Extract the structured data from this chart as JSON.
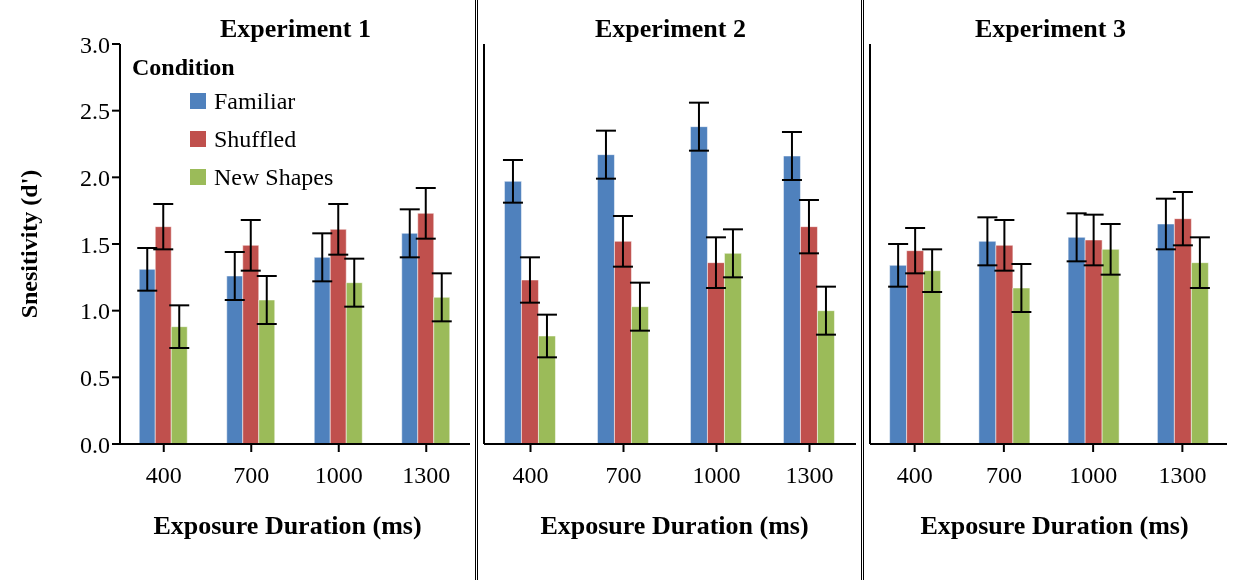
{
  "chart_data": [
    {
      "type": "bar",
      "title": "Experiment 1",
      "xlabel": "Exposure Duration (ms)",
      "ylabel": "Snesitivity (d')",
      "legend_title": "Condition",
      "legend": "top left",
      "categories": [
        "400",
        "700",
        "1000",
        "1300"
      ],
      "ylim": [
        0,
        3
      ],
      "yticks": [
        {
          "value": 0,
          "label": "0.0"
        },
        {
          "value": 0.5,
          "label": "0.5"
        },
        {
          "value": 1,
          "label": "1.0"
        },
        {
          "value": 1.5,
          "label": "1.5"
        },
        {
          "value": 2,
          "label": "2.0"
        },
        {
          "value": 2.5,
          "label": "2.5"
        },
        {
          "value": 3,
          "label": "3.0"
        }
      ],
      "grid": false,
      "series": [
        {
          "name": "Familiar",
          "color": "#4f81bd",
          "values": [
            1.31,
            1.26,
            1.4,
            1.58
          ],
          "errors": [
            0.16,
            0.18,
            0.18,
            0.18
          ]
        },
        {
          "name": "Shuffled",
          "color": "#c0504d",
          "values": [
            1.63,
            1.49,
            1.61,
            1.73
          ],
          "errors": [
            0.17,
            0.19,
            0.19,
            0.19
          ]
        },
        {
          "name": "New Shapes",
          "color": "#9bbb59",
          "values": [
            0.88,
            1.08,
            1.21,
            1.1
          ],
          "errors": [
            0.16,
            0.18,
            0.18,
            0.18
          ]
        }
      ]
    },
    {
      "type": "bar",
      "title": "Experiment 2",
      "xlabel": "Exposure Duration (ms)",
      "categories": [
        "400",
        "700",
        "1000",
        "1300"
      ],
      "ylim": [
        0,
        3
      ],
      "tick_labels": "x",
      "grid": false,
      "series": [
        {
          "color": "#4f81bd",
          "values": [
            1.97,
            2.17,
            2.38,
            2.16
          ],
          "errors": [
            0.16,
            0.18,
            0.18,
            0.18
          ]
        },
        {
          "color": "#c0504d",
          "values": [
            1.23,
            1.52,
            1.36,
            1.63
          ],
          "errors": [
            0.17,
            0.19,
            0.19,
            0.2
          ]
        },
        {
          "color": "#9bbb59",
          "values": [
            0.81,
            1.03,
            1.43,
            1.0
          ],
          "errors": [
            0.16,
            0.18,
            0.18,
            0.18
          ]
        }
      ]
    },
    {
      "type": "bar",
      "title": "Experiment 3",
      "xlabel": "Exposure Duration (ms)",
      "categories": [
        "400",
        "700",
        "1000",
        "1300"
      ],
      "ylim": [
        0,
        3
      ],
      "tick_labels": "x",
      "grid": false,
      "series": [
        {
          "color": "#4f81bd",
          "values": [
            1.34,
            1.52,
            1.55,
            1.65
          ],
          "errors": [
            0.16,
            0.18,
            0.18,
            0.19
          ]
        },
        {
          "color": "#c0504d",
          "values": [
            1.45,
            1.49,
            1.53,
            1.69
          ],
          "errors": [
            0.17,
            0.19,
            0.19,
            0.2
          ]
        },
        {
          "color": "#9bbb59",
          "values": [
            1.3,
            1.17,
            1.46,
            1.36
          ],
          "errors": [
            0.16,
            0.18,
            0.19,
            0.19
          ]
        }
      ]
    }
  ]
}
